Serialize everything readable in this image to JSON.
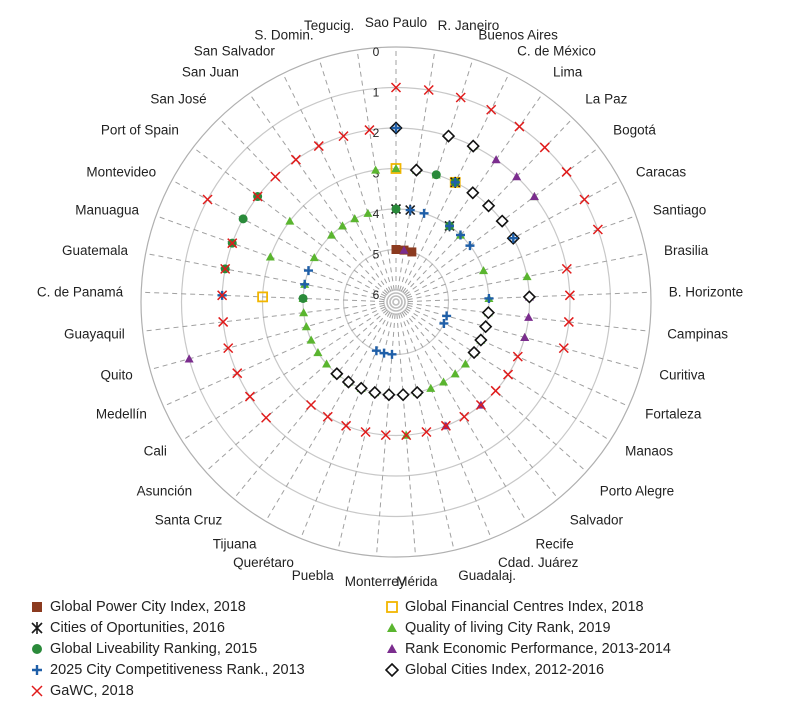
{
  "chart_data": {
    "type": "radar",
    "scale": {
      "min": 0,
      "max": 6,
      "center_value": 6,
      "rings": [
        "0",
        "1",
        "2",
        "3",
        "4",
        "5",
        "6"
      ]
    },
    "cities": [
      "Sao Paulo",
      "R. Janeiro",
      "Buenos Aires",
      "C. de México",
      "Lima",
      "La Paz",
      "Bogotá",
      "Caracas",
      "Santiago",
      "Brasilia",
      "B. Horizonte",
      "Campinas",
      "Curitiva",
      "Fortaleza",
      "Manaos",
      "Porto Alegre",
      "Salvador",
      "Recife",
      "Cdad. Juárez",
      "Guadalaj.",
      "Mérida",
      "Monterrey",
      "Puebla",
      "Querétaro",
      "Tijuana",
      "Santa Cruz",
      "Asunción",
      "Cali",
      "Medellín",
      "Quito",
      "Guayaquil",
      "C. de Panamá",
      "Guatemala",
      "Manuagua",
      "Montevideo",
      "Port of Spain",
      "San José",
      "San Juan",
      "San Salvador",
      "S. Domin.",
      "Tegucig."
    ],
    "series": [
      {
        "name": "Global Power City Index, 2018",
        "marker": "filled-square",
        "color": "#8b3a1f",
        "points": [
          [
            0,
            5
          ],
          [
            1,
            5
          ],
          [
            2,
            5
          ]
        ]
      },
      {
        "name": "Global Financial Centres Index, 2018",
        "marker": "open-square",
        "color": "#f2b600",
        "points": [
          [
            0,
            3
          ],
          [
            3,
            3
          ],
          [
            31,
            3
          ]
        ]
      },
      {
        "name": "Cities of Oportunities, 2016",
        "marker": "asterisk",
        "color": "#1a1a1a",
        "points": [
          [
            0,
            4
          ],
          [
            1,
            4
          ],
          [
            3,
            3
          ],
          [
            4,
            4
          ]
        ]
      },
      {
        "name": "Quality of living City Rank, 2019",
        "marker": "triangle",
        "color": "#5ab52f",
        "points": [
          [
            0,
            3
          ],
          [
            1,
            3
          ],
          [
            2,
            3
          ],
          [
            3,
            2
          ],
          [
            4,
            4
          ],
          [
            5,
            4
          ],
          [
            6,
            2
          ],
          [
            8,
            4
          ],
          [
            9,
            3
          ],
          [
            10,
            4
          ],
          [
            11,
            4
          ],
          [
            12,
            3
          ],
          [
            13,
            4
          ],
          [
            14,
            4
          ],
          [
            15,
            4
          ],
          [
            16,
            4
          ],
          [
            17,
            4
          ],
          [
            18,
            4
          ],
          [
            19,
            4
          ],
          [
            20,
            3
          ],
          [
            21,
            4
          ],
          [
            22,
            4
          ],
          [
            23,
            4
          ],
          [
            24,
            4
          ],
          [
            25,
            4
          ],
          [
            26,
            4
          ],
          [
            27,
            4
          ],
          [
            28,
            4
          ],
          [
            29,
            4
          ],
          [
            30,
            4
          ],
          [
            31,
            4
          ],
          [
            32,
            4
          ],
          [
            33,
            3
          ],
          [
            34,
            4
          ],
          [
            35,
            3
          ],
          [
            36,
            4
          ],
          [
            37,
            4
          ],
          [
            38,
            4
          ],
          [
            39,
            4
          ],
          [
            40,
            3
          ]
        ]
      },
      {
        "name": "Rank Economic Performance, 2013-2014",
        "marker": "triangle",
        "color": "#7b2d8e",
        "points": [
          [
            1,
            5
          ],
          [
            3,
            3
          ],
          [
            4,
            2
          ],
          [
            5,
            2
          ],
          [
            6,
            2
          ],
          [
            10,
            3
          ],
          [
            11,
            3
          ],
          [
            12,
            3
          ],
          [
            16,
            3
          ],
          [
            18,
            3
          ],
          [
            21,
            4
          ],
          [
            29,
            1
          ]
        ]
      },
      {
        "name": "Global Liveability Ranking, 2015",
        "marker": "circle",
        "color": "#2a8a3a",
        "points": [
          [
            0,
            4
          ],
          [
            1,
            3
          ],
          [
            2,
            3
          ],
          [
            3,
            3
          ],
          [
            4,
            4
          ],
          [
            32,
            2
          ],
          [
            33,
            2
          ],
          [
            34,
            2
          ],
          [
            35,
            2
          ],
          [
            31,
            4
          ]
        ]
      },
      {
        "name": "Global Cities Index, 2012-2016",
        "marker": "open-diamond",
        "color": "#111111",
        "points": [
          [
            0,
            2
          ],
          [
            1,
            3
          ],
          [
            2,
            2
          ],
          [
            3,
            2
          ],
          [
            4,
            3
          ],
          [
            5,
            3
          ],
          [
            6,
            3
          ],
          [
            7,
            3
          ],
          [
            10,
            3
          ],
          [
            11,
            4
          ],
          [
            12,
            4
          ],
          [
            13,
            4
          ],
          [
            14,
            4
          ],
          [
            19,
            4
          ],
          [
            20,
            4
          ],
          [
            21,
            4
          ],
          [
            22,
            4
          ],
          [
            23,
            4
          ],
          [
            24,
            4
          ],
          [
            25,
            4
          ]
        ]
      },
      {
        "name": "2025 City Competitiveness Rank., 2013",
        "marker": "plus",
        "color": "#1f5fa8",
        "points": [
          [
            0,
            2
          ],
          [
            1,
            4
          ],
          [
            2,
            4
          ],
          [
            3,
            3
          ],
          [
            4,
            4
          ],
          [
            5,
            4
          ],
          [
            6,
            4
          ],
          [
            7,
            3
          ],
          [
            10,
            4
          ],
          [
            12,
            5
          ],
          [
            13,
            5
          ],
          [
            21,
            5
          ],
          [
            22,
            5
          ],
          [
            23,
            5
          ],
          [
            31,
            2
          ],
          [
            32,
            4
          ],
          [
            33,
            4
          ]
        ]
      },
      {
        "name": "GaWC, 2018",
        "marker": "x",
        "color": "#e01b1b",
        "points": [
          [
            0,
            1
          ],
          [
            1,
            1
          ],
          [
            2,
            1
          ],
          [
            3,
            1
          ],
          [
            4,
            1
          ],
          [
            5,
            1
          ],
          [
            6,
            1
          ],
          [
            7,
            1
          ],
          [
            8,
            1
          ],
          [
            9,
            2
          ],
          [
            10,
            2
          ],
          [
            11,
            2
          ],
          [
            12,
            2
          ],
          [
            13,
            3
          ],
          [
            14,
            3
          ],
          [
            15,
            3
          ],
          [
            16,
            3
          ],
          [
            17,
            3
          ],
          [
            18,
            3
          ],
          [
            19,
            3
          ],
          [
            20,
            3
          ],
          [
            21,
            3
          ],
          [
            22,
            3
          ],
          [
            23,
            3
          ],
          [
            24,
            3
          ],
          [
            25,
            3
          ],
          [
            26,
            2
          ],
          [
            27,
            2
          ],
          [
            28,
            2
          ],
          [
            29,
            2
          ],
          [
            30,
            2
          ],
          [
            31,
            2
          ],
          [
            32,
            2
          ],
          [
            33,
            2
          ],
          [
            34,
            1
          ],
          [
            35,
            2
          ],
          [
            36,
            2
          ],
          [
            37,
            2
          ],
          [
            38,
            2
          ],
          [
            39,
            2
          ],
          [
            40,
            2
          ]
        ]
      }
    ],
    "legend": {
      "position": "bottom",
      "items": [
        {
          "label": "Global Power City Index, 2018",
          "marker": "filled-square",
          "color": "#8b3a1f"
        },
        {
          "label": "Global Financial Centres Index, 2018",
          "marker": "open-square",
          "color": "#f2b600"
        },
        {
          "label": "Cities of Oportunities,  2016",
          "marker": "asterisk",
          "color": "#1a1a1a"
        },
        {
          "label": "Quality of living City Rank, 2019",
          "marker": "triangle",
          "color": "#5ab52f"
        },
        {
          "label": "Global Liveability Ranking, 2015",
          "marker": "circle",
          "color": "#2a8a3a"
        },
        {
          "label": "Rank Economic Performance, 2013-2014",
          "marker": "triangle",
          "color": "#7b2d8e"
        },
        {
          "label": "2025 City Competitiveness Rank., 2013",
          "marker": "plus",
          "color": "#1f5fa8"
        },
        {
          "label": "Global Cities Index, 2012-2016",
          "marker": "open-diamond",
          "color": "#111111"
        },
        {
          "label": "GaWC, 2018",
          "marker": "x",
          "color": "#e01b1b"
        }
      ]
    },
    "grid": true
  }
}
